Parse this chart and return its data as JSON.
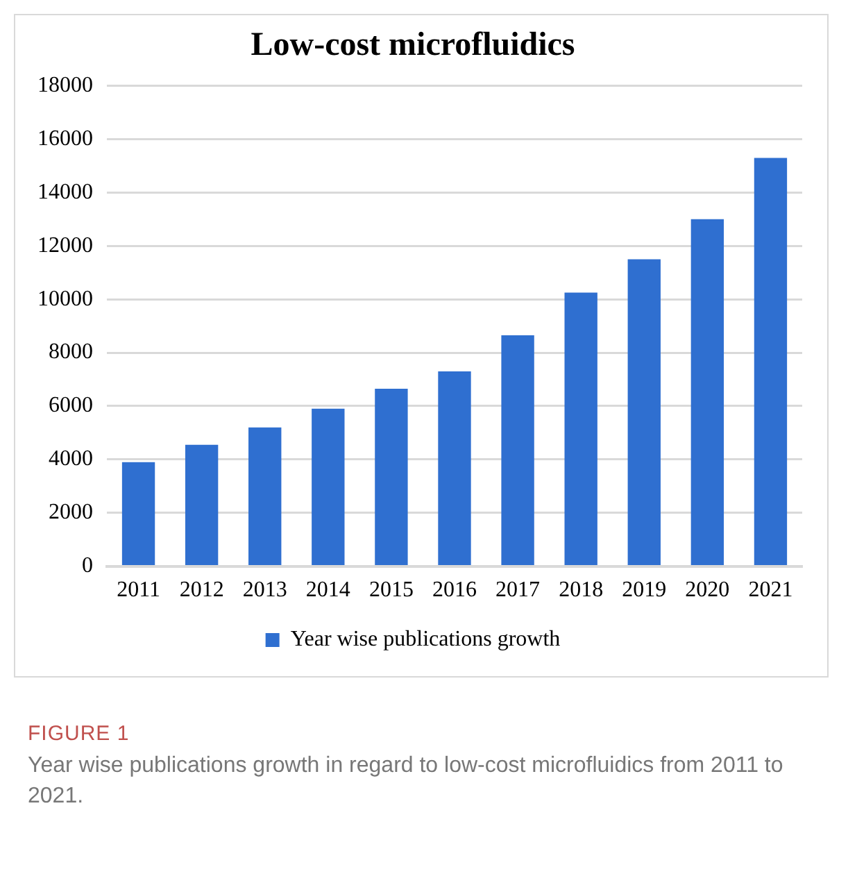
{
  "chart_data": {
    "type": "bar",
    "title": "Low-cost microfluidics",
    "categories": [
      "2011",
      "2012",
      "2013",
      "2014",
      "2015",
      "2016",
      "2017",
      "2018",
      "2019",
      "2020",
      "2021"
    ],
    "series": [
      {
        "name": "Year wise publications growth",
        "color": "#2f6fd0",
        "values": [
          3900,
          4550,
          5200,
          5900,
          6650,
          7300,
          8650,
          10250,
          11500,
          13000,
          15300
        ]
      }
    ],
    "ylim": [
      0,
      18000
    ],
    "yticks": [
      0,
      2000,
      4000,
      6000,
      8000,
      10000,
      12000,
      14000,
      16000,
      18000
    ],
    "grid": "y",
    "legend": "bottom",
    "annotations": [
      "FIGURE 1",
      "Year wise publications growth in regard to low-cost microfluidics from 2011 to 2021."
    ]
  }
}
